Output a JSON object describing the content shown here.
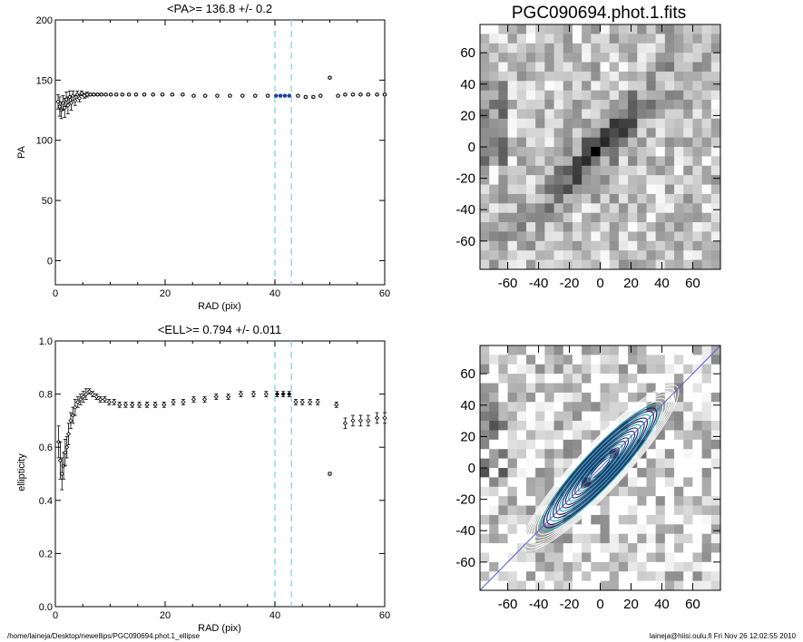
{
  "chart_data": [
    {
      "type": "scatter",
      "title": "<PA>= 136.8 +/-   0.2",
      "xlabel": "RAD (pix)",
      "ylabel": "PA",
      "xlim": [
        0,
        60
      ],
      "ylim": [
        -20,
        200
      ],
      "xticks": [
        "0",
        "20",
        "40",
        "60"
      ],
      "yticks": [
        "0",
        "50",
        "100",
        "150",
        "200"
      ],
      "vlines": [
        40,
        43
      ],
      "series": [
        {
          "x": [
            0.5,
            0.8,
            1.1,
            1.4,
            1.7,
            2.0,
            2.3,
            2.6,
            2.9,
            3.2,
            3.6,
            4.0,
            4.4,
            4.8,
            5.3,
            5.8,
            6.4,
            7.0,
            7.7,
            8.4,
            9.2,
            10.1,
            11.1,
            12.2,
            13.4,
            14.7,
            16.2,
            17.8,
            19.5,
            21.3,
            23.2,
            25.2,
            27.3,
            29.5,
            31.8,
            34.1,
            36.4,
            38.7,
            40.2,
            41.0,
            41.8,
            42.6,
            44.2,
            45.6,
            47.0,
            48.3,
            50.0,
            51.5,
            52.8,
            54.2,
            55.6,
            57.0,
            58.6,
            60.0
          ],
          "y": [
            132,
            128,
            125,
            131,
            127,
            134,
            129,
            136,
            131,
            137,
            133,
            138,
            135,
            139,
            137,
            138,
            138,
            138,
            138,
            138,
            138,
            138,
            138,
            138,
            138,
            138,
            138,
            138,
            138,
            138,
            138,
            137,
            137,
            137,
            137,
            137,
            137,
            137,
            137,
            137,
            137,
            137,
            137,
            136,
            136,
            137,
            152,
            137,
            138,
            138,
            138,
            138,
            138,
            138
          ],
          "err": [
            6,
            8,
            7,
            6,
            8,
            6,
            7,
            5,
            6,
            4,
            4,
            3,
            3,
            2,
            2,
            2,
            1,
            1,
            1,
            1,
            1,
            1,
            1,
            1,
            1,
            1,
            1,
            1,
            1,
            1,
            1,
            1,
            1,
            1,
            1,
            1,
            1,
            1,
            1,
            1,
            1,
            1,
            1,
            1,
            1,
            1,
            1,
            1,
            1,
            1,
            1,
            1,
            1,
            1
          ]
        }
      ]
    },
    {
      "type": "scatter",
      "title": "<ELL>= 0.794 +/-   0.011",
      "xlabel": "RAD (pix)",
      "ylabel": "ellipticity",
      "xlim": [
        0,
        60
      ],
      "ylim": [
        0.0,
        1.0
      ],
      "xticks": [
        "0",
        "20",
        "40",
        "60"
      ],
      "yticks": [
        "0.0",
        "0.2",
        "0.4",
        "0.6",
        "0.8",
        "1.0"
      ],
      "vlines": [
        40,
        43
      ],
      "series": [
        {
          "x": [
            0.6,
            0.9,
            1.2,
            1.5,
            1.8,
            2.1,
            2.4,
            2.8,
            3.2,
            3.6,
            4.1,
            4.6,
            5.1,
            5.6,
            6.2,
            6.8,
            7.5,
            8.2,
            9.0,
            9.8,
            10.7,
            11.7,
            12.8,
            14.0,
            15.3,
            16.7,
            18.2,
            19.8,
            21.5,
            23.3,
            25.2,
            27.2,
            29.3,
            31.5,
            33.8,
            36.1,
            38.4,
            40.4,
            41.5,
            42.6,
            43.8,
            45.0,
            46.4,
            47.8,
            50.0,
            51.2,
            52.8,
            54.2,
            55.6,
            57.0,
            58.6,
            60.0
          ],
          "y": [
            0.62,
            0.55,
            0.5,
            0.53,
            0.58,
            0.6,
            0.65,
            0.7,
            0.72,
            0.75,
            0.77,
            0.78,
            0.79,
            0.8,
            0.81,
            0.8,
            0.79,
            0.78,
            0.78,
            0.77,
            0.77,
            0.76,
            0.76,
            0.76,
            0.76,
            0.76,
            0.76,
            0.76,
            0.77,
            0.77,
            0.78,
            0.78,
            0.79,
            0.79,
            0.8,
            0.8,
            0.8,
            0.8,
            0.8,
            0.8,
            0.77,
            0.77,
            0.77,
            0.77,
            0.5,
            0.76,
            0.69,
            0.7,
            0.7,
            0.7,
            0.71,
            0.71
          ],
          "err": [
            0.06,
            0.07,
            0.06,
            0.05,
            0.05,
            0.04,
            0.04,
            0.03,
            0.03,
            0.03,
            0.02,
            0.02,
            0.02,
            0.02,
            0.01,
            0.01,
            0.01,
            0.01,
            0.01,
            0.01,
            0.01,
            0.01,
            0.01,
            0.01,
            0.01,
            0.01,
            0.01,
            0.01,
            0.01,
            0.01,
            0.01,
            0.01,
            0.01,
            0.01,
            0.01,
            0.01,
            0.01,
            0.01,
            0.01,
            0.01,
            0.01,
            0.01,
            0.01,
            0.01,
            0.005,
            0.01,
            0.02,
            0.02,
            0.02,
            0.02,
            0.02,
            0.02
          ]
        }
      ]
    },
    {
      "type": "heatmap",
      "title": "PGC090694.phot.1.fits",
      "xlim": [
        -78,
        78
      ],
      "ylim": [
        -78,
        78
      ],
      "xticks": [
        "-60",
        "-40",
        "-20",
        "0",
        "20",
        "40",
        "60"
      ],
      "yticks": [
        "-60",
        "-40",
        "-20",
        "0",
        "20",
        "40",
        "60"
      ],
      "colormap": "inverted grayscale",
      "source_position_angle_deg": 136.8,
      "source_ellipticity": 0.794
    },
    {
      "type": "heatmap",
      "title": "",
      "xlim": [
        -78,
        78
      ],
      "ylim": [
        -78,
        78
      ],
      "xticks": [
        "-60",
        "-40",
        "-20",
        "0",
        "20",
        "40",
        "60"
      ],
      "yticks": [
        "-60",
        "-40",
        "-20",
        "0",
        "20",
        "40",
        "60"
      ],
      "colormap": "inverted grayscale",
      "overlay": "fitted isophote ellipses and major-axis line",
      "contour_colors": [
        "#ffffff",
        "#20b2aa",
        "#1f2a6e"
      ],
      "axis_line_color": "#5b5bd6",
      "source_position_angle_deg": 136.8,
      "source_ellipticity": 0.794
    }
  ],
  "footer": {
    "left": "/home/laineja/Desktop/newellips/PGC090694.phot.1_ellipse",
    "right": "laineja@hiisi.oulu.fi  Fri Nov 26 12:02:55 2010"
  },
  "colors": {
    "vline": "#7fd4e6",
    "highlight": "#1f3fa8",
    "marker": "#000000"
  }
}
